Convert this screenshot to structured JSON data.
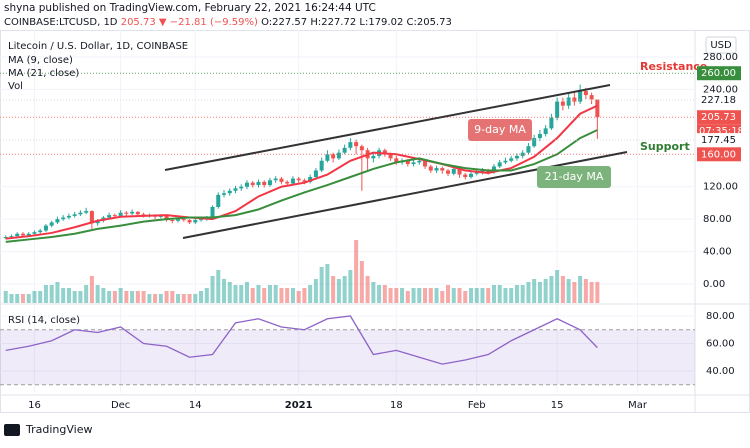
{
  "header": {
    "publisher": "shyna published on TradingView.com, February 22, 2021 16:24:44 UTC",
    "symbol": "COINBASE:LTCUSD, 1D",
    "last": "205.73",
    "change": "▼ −21.81 (−9.59%)",
    "ohlc": "O:227.57 H:227.72 L:179.02 C:205.73",
    "currency": "USD",
    "brand": "TradingView"
  },
  "chart_data": {
    "type": "candlestick",
    "title": "Litecoin / U.S. Dollar, 1D, COINBASE",
    "up_color": "#26a69a",
    "down_color": "#ef5350",
    "xlim": [
      -1,
      120
    ],
    "xticks": [
      {
        "value": 5,
        "label": "16"
      },
      {
        "value": 20,
        "label": "Dec"
      },
      {
        "value": 33,
        "label": "14"
      },
      {
        "value": 51,
        "label": "2021"
      },
      {
        "value": 68,
        "label": "18"
      },
      {
        "value": 82,
        "label": "Feb"
      },
      {
        "value": 96,
        "label": "15"
      },
      {
        "value": 110,
        "label": "Mar"
      }
    ],
    "ylim": [
      -23.4,
      313.3
    ],
    "yticks": [
      {
        "value": 0,
        "label": "0.00"
      },
      {
        "value": 40,
        "label": "40.00"
      },
      {
        "value": 80,
        "label": "80.00"
      },
      {
        "value": 120,
        "label": "120.00"
      },
      {
        "value": 240,
        "label": "240.00"
      },
      {
        "value": 280,
        "label": "280.00"
      }
    ],
    "grid": true,
    "candles": {
      "open": [
        57,
        58,
        59,
        62,
        60,
        62,
        64,
        66,
        72,
        76,
        80,
        82,
        84,
        86,
        88,
        90,
        75,
        78,
        82,
        85,
        84,
        88,
        87,
        89,
        86,
        84,
        85,
        83,
        84,
        79,
        78,
        80,
        79,
        76,
        79,
        80,
        82,
        95,
        110,
        112,
        115,
        118,
        120,
        125,
        122,
        126,
        122,
        128,
        130,
        126,
        124,
        130,
        128,
        126,
        132,
        140,
        152,
        160,
        155,
        162,
        168,
        175,
        170,
        165,
        155,
        158,
        165,
        160,
        155,
        150,
        152,
        148,
        150,
        152,
        145,
        140,
        143,
        140,
        136,
        142,
        135,
        132,
        136,
        138,
        140,
        138,
        145,
        150,
        152,
        155,
        158,
        162,
        170,
        180,
        185,
        192,
        205,
        225,
        220,
        230,
        225,
        238,
        233,
        227.57
      ],
      "high": [
        60,
        61,
        64,
        64,
        64,
        66,
        68,
        74,
        78,
        83,
        85,
        87,
        89,
        91,
        94,
        91,
        80,
        84,
        88,
        87,
        91,
        90,
        92,
        90,
        88,
        87,
        86,
        86,
        85,
        81,
        82,
        82,
        80,
        81,
        82,
        84,
        97,
        113,
        116,
        118,
        121,
        123,
        128,
        127,
        129,
        128,
        131,
        133,
        132,
        128,
        133,
        132,
        130,
        135,
        143,
        156,
        165,
        162,
        166,
        172,
        180,
        178,
        172,
        168,
        162,
        168,
        167,
        162,
        158,
        155,
        154,
        153,
        155,
        153,
        147,
        146,
        145,
        142,
        145,
        143,
        137,
        139,
        141,
        143,
        142,
        148,
        153,
        156,
        158,
        161,
        165,
        174,
        184,
        190,
        196,
        210,
        230,
        230,
        236,
        238,
        246,
        242,
        236,
        227.72
      ],
      "low": [
        55,
        56,
        57,
        58,
        58,
        60,
        62,
        64,
        70,
        74,
        78,
        80,
        82,
        84,
        86,
        68,
        72,
        76,
        80,
        81,
        82,
        84,
        85,
        83,
        82,
        82,
        80,
        81,
        77,
        75,
        76,
        77,
        74,
        74,
        77,
        78,
        80,
        93,
        107,
        109,
        112,
        115,
        117,
        119,
        119,
        119,
        120,
        125,
        123,
        121,
        122,
        125,
        123,
        124,
        130,
        138,
        150,
        150,
        153,
        160,
        165,
        160,
        115,
        140,
        150,
        155,
        157,
        152,
        147,
        147,
        145,
        145,
        147,
        142,
        137,
        137,
        136,
        133,
        134,
        131,
        129,
        130,
        134,
        135,
        135,
        136,
        143,
        148,
        150,
        152,
        155,
        160,
        168,
        176,
        182,
        190,
        202,
        214,
        216,
        220,
        222,
        228,
        222,
        179.02
      ],
      "close": [
        58,
        59,
        62,
        60,
        62,
        64,
        66,
        72,
        76,
        80,
        82,
        84,
        86,
        88,
        90,
        75,
        78,
        82,
        85,
        84,
        88,
        87,
        89,
        86,
        84,
        85,
        83,
        84,
        79,
        78,
        80,
        79,
        76,
        79,
        80,
        82,
        95,
        110,
        112,
        115,
        118,
        120,
        125,
        122,
        126,
        122,
        128,
        130,
        126,
        124,
        130,
        128,
        126,
        132,
        140,
        152,
        160,
        155,
        162,
        168,
        175,
        170,
        165,
        155,
        158,
        165,
        160,
        155,
        150,
        152,
        148,
        150,
        152,
        145,
        140,
        143,
        140,
        136,
        142,
        135,
        132,
        136,
        138,
        140,
        138,
        145,
        150,
        152,
        155,
        158,
        162,
        170,
        180,
        185,
        192,
        205,
        225,
        220,
        230,
        225,
        238,
        233,
        227.57,
        205.73
      ]
    },
    "volume": {
      "name": "Vol",
      "values": [
        4,
        3,
        3,
        3,
        3,
        4,
        4,
        6,
        6,
        7,
        5,
        5,
        4,
        4,
        6,
        9,
        6,
        5,
        4,
        4,
        5,
        4,
        4,
        4,
        4,
        3,
        3,
        3,
        4,
        4,
        3,
        3,
        3,
        3,
        4,
        5,
        9,
        11,
        8,
        7,
        6,
        6,
        7,
        5,
        6,
        5,
        6,
        6,
        5,
        5,
        5,
        4,
        5,
        6,
        8,
        12,
        13,
        9,
        8,
        9,
        11,
        21,
        14,
        9,
        7,
        6,
        6,
        5,
        5,
        5,
        4,
        5,
        5,
        5,
        5,
        5,
        4,
        6,
        5,
        5,
        4,
        5,
        5,
        5,
        5,
        6,
        6,
        5,
        5,
        6,
        6,
        7,
        8,
        7,
        8,
        9,
        11,
        9,
        8,
        7,
        9,
        8,
        7,
        7
      ]
    },
    "lines": {
      "x": [
        0,
        4,
        8,
        12,
        16,
        20,
        24,
        28,
        32,
        36,
        40,
        44,
        48,
        52,
        56,
        60,
        64,
        68,
        72,
        76,
        80,
        84,
        88,
        92,
        96,
        100,
        103
      ],
      "series": [
        {
          "name": "MA (9, close)",
          "color": "#f23645",
          "values": [
            56,
            59,
            63,
            70,
            78,
            83,
            84,
            85,
            82,
            80,
            90,
            108,
            120,
            125,
            135,
            152,
            162,
            160,
            154,
            148,
            140,
            137,
            143,
            157,
            180,
            210,
            220
          ]
        },
        {
          "name": "MA (21, close)",
          "color": "#388e3c",
          "values": [
            52,
            55,
            58,
            62,
            68,
            72,
            77,
            80,
            82,
            82,
            85,
            92,
            103,
            113,
            122,
            132,
            142,
            150,
            155,
            148,
            143,
            140,
            140,
            148,
            160,
            180,
            190
          ]
        }
      ]
    },
    "price_labels": [
      {
        "value": 260,
        "label": "260.00",
        "color": "#388e3c"
      },
      {
        "value": 227.18,
        "label": "227.18",
        "color": "#d1d4dc"
      },
      {
        "value": 205.73,
        "label": "205.73",
        "color": "#ef5350"
      },
      {
        "value": 177.45,
        "label": "177.45",
        "color": "#d1d4dc"
      },
      {
        "value": 160,
        "label": "160.00",
        "color": "#ef5350"
      }
    ],
    "countdown": "07:35:18",
    "annotations": {
      "resistance": "Resistance",
      "support": "Support",
      "ma9": "9-day MA",
      "ma21": "21-day MA"
    },
    "rsi": {
      "type": "line",
      "name": "RSI (14, close)",
      "color": "#8e63c8",
      "ylim": [
        24,
        88
      ],
      "yticks": [
        {
          "value": 40,
          "label": "40.00"
        },
        {
          "value": 60,
          "label": "60.00"
        },
        {
          "value": 80,
          "label": "80.00"
        }
      ],
      "bands": [
        30,
        70
      ],
      "x": [
        0,
        4,
        8,
        12,
        16,
        20,
        24,
        28,
        32,
        36,
        40,
        44,
        48,
        52,
        56,
        60,
        64,
        68,
        72,
        76,
        80,
        84,
        88,
        92,
        96,
        100,
        103
      ],
      "values": [
        55,
        58,
        62,
        70,
        68,
        72,
        60,
        58,
        50,
        52,
        75,
        78,
        72,
        70,
        78,
        80,
        52,
        55,
        50,
        45,
        48,
        52,
        62,
        70,
        78,
        70,
        57
      ]
    }
  }
}
